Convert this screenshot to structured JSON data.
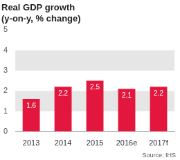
{
  "chart_data": {
    "type": "bar",
    "title": "Real GDP growth",
    "subtitle": "(y-on-y, % change)",
    "categories": [
      "2013",
      "2014",
      "2015",
      "2016e",
      "2017f"
    ],
    "values": [
      1.6,
      2.2,
      2.5,
      2.1,
      2.2
    ],
    "color": "#e3173e",
    "ylim": [
      0,
      5
    ],
    "yticks": [
      0,
      1,
      2,
      3,
      4,
      5
    ],
    "grid": true,
    "data_labels": true,
    "source": "Source: IHS"
  }
}
